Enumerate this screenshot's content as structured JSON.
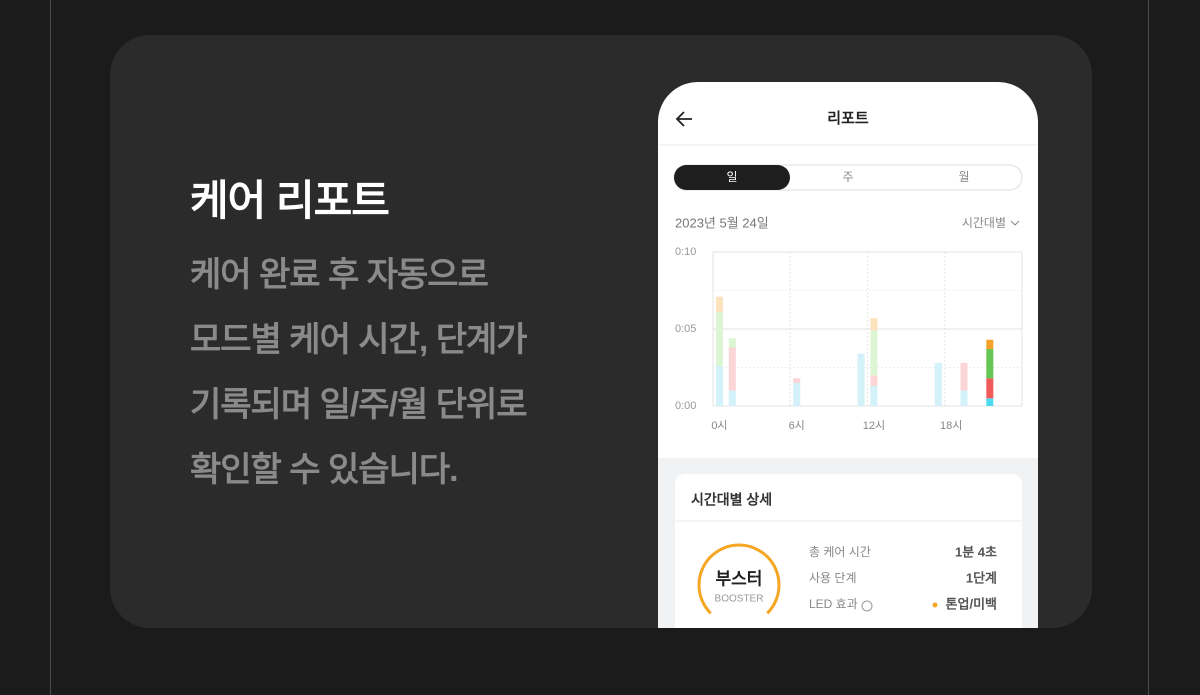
{
  "promo": {
    "title": "케어 리포트",
    "lines": [
      "케어 완료 후 자동으로",
      "모드별 케어 시간, 단계가",
      "기록되며 일/주/월 단위로",
      "확인할 수 있습니다."
    ]
  },
  "app": {
    "header": "리포트",
    "tabs": [
      "일",
      "주",
      "월"
    ],
    "selected_tab": 0,
    "date": "2023년 5월 24일",
    "view": "시간대별",
    "detail": {
      "title": "시간대별 상세",
      "mode": "부스터",
      "mode_en": "BOOSTER",
      "rows": [
        {
          "label": "총 케어 시간",
          "value": "1분 4초"
        },
        {
          "label": "사용 단계",
          "value": "1단계"
        },
        {
          "label": "LED 효과",
          "value": "톤업/미백"
        }
      ]
    }
  },
  "chart_data": {
    "type": "bar",
    "stacked": true,
    "categories": [
      "0시",
      null,
      null,
      null,
      null,
      null,
      "6시",
      null,
      null,
      null,
      null,
      null,
      "12시",
      null,
      null,
      null,
      null,
      null,
      "18시",
      null,
      null,
      null,
      null,
      null
    ],
    "ylim": [
      0,
      10
    ],
    "yticks": [
      {
        "value": 0,
        "label": "0:00"
      },
      {
        "value": 5,
        "label": "0:05"
      },
      {
        "value": 10,
        "label": "0:10"
      }
    ],
    "minor_yticks": [
      2.5,
      7.5
    ],
    "highlight_index": 21,
    "series": [
      {
        "color": "#d3f1f8",
        "highlight_color": "#4dd9f0",
        "values": [
          2.6,
          1.0,
          null,
          null,
          null,
          null,
          1.5,
          null,
          null,
          null,
          null,
          3.4,
          1.3,
          null,
          null,
          null,
          null,
          2.8,
          null,
          1.0,
          null,
          0.5,
          null,
          null
        ]
      },
      {
        "color": "#fcd5d6",
        "highlight_color": "#f25a5a",
        "values": [
          null,
          2.8,
          null,
          null,
          null,
          null,
          0.3,
          null,
          null,
          null,
          null,
          null,
          0.7,
          null,
          null,
          null,
          null,
          null,
          null,
          1.8,
          null,
          1.3,
          null,
          null
        ]
      },
      {
        "color": "#dcf5d3",
        "highlight_color": "#66c653",
        "values": [
          3.5,
          0.6,
          null,
          null,
          null,
          null,
          null,
          null,
          null,
          null,
          null,
          null,
          2.9,
          null,
          null,
          null,
          null,
          null,
          null,
          null,
          null,
          1.9,
          null,
          null
        ]
      },
      {
        "color": "#fde3bd",
        "highlight_color": "#f5a12a",
        "values": [
          1.0,
          null,
          null,
          null,
          null,
          null,
          null,
          null,
          null,
          null,
          null,
          null,
          0.8,
          null,
          null,
          null,
          null,
          null,
          null,
          null,
          null,
          0.6,
          null,
          null
        ]
      }
    ]
  }
}
